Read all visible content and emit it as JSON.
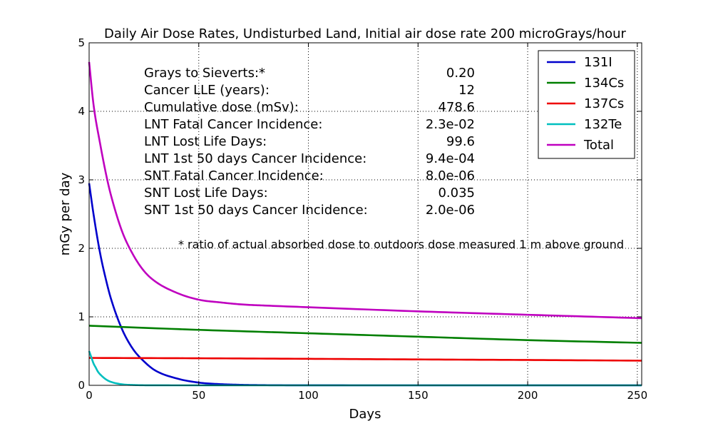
{
  "chart_data": {
    "type": "line",
    "title": "Daily Air Dose Rates, Undisturbed Land, Initial air dose rate 200 microGrays/hour",
    "xlabel": "Days",
    "ylabel": "mGy per day",
    "xlim": [
      0,
      252
    ],
    "ylim": [
      0,
      5
    ],
    "xticks": [
      0,
      50,
      100,
      150,
      200,
      250
    ],
    "yticks": [
      0,
      1,
      2,
      3,
      4,
      5
    ],
    "grid": true,
    "legend_position": "top-right",
    "series": [
      {
        "name": "131I",
        "color": "#0000cc",
        "x": [
          0,
          2,
          5,
          8,
          10,
          15,
          20,
          25,
          30,
          40,
          50,
          60,
          70,
          80,
          100,
          150,
          200,
          252
        ],
        "y": [
          2.95,
          2.5,
          1.93,
          1.5,
          1.26,
          0.82,
          0.53,
          0.35,
          0.22,
          0.1,
          0.04,
          0.017,
          0.007,
          0.003,
          0.0005,
          0.0,
          0.0,
          0.0
        ]
      },
      {
        "name": "134Cs",
        "color": "#007f00",
        "x": [
          0,
          50,
          100,
          150,
          200,
          252
        ],
        "y": [
          0.87,
          0.81,
          0.76,
          0.71,
          0.66,
          0.62
        ]
      },
      {
        "name": "137Cs",
        "color": "#ee0000",
        "x": [
          0,
          50,
          100,
          150,
          200,
          252
        ],
        "y": [
          0.4,
          0.395,
          0.387,
          0.378,
          0.37,
          0.36
        ]
      },
      {
        "name": "132Te",
        "color": "#00bfbf",
        "x": [
          0,
          1,
          2,
          3,
          4,
          6,
          8,
          10,
          15,
          20,
          30,
          50,
          252
        ],
        "y": [
          0.5,
          0.41,
          0.32,
          0.26,
          0.2,
          0.13,
          0.08,
          0.05,
          0.015,
          0.005,
          0.0005,
          0.0,
          0.0
        ]
      },
      {
        "name": "Total",
        "color": "#bf00bf",
        "x": [
          0,
          2,
          5,
          8,
          10,
          15,
          20,
          25,
          30,
          40,
          50,
          60,
          70,
          80,
          100,
          150,
          200,
          252
        ],
        "y": [
          4.72,
          4.1,
          3.53,
          3.04,
          2.77,
          2.25,
          1.91,
          1.67,
          1.52,
          1.35,
          1.25,
          1.21,
          1.18,
          1.165,
          1.14,
          1.08,
          1.03,
          0.98
        ]
      }
    ],
    "annotation_rows": [
      {
        "label": "Grays to Sieverts:*",
        "value": "0.20"
      },
      {
        "label": "Cancer LLE (years):",
        "value": "12"
      },
      {
        "label": "Cumulative dose (mSv):",
        "value": "478.6"
      },
      {
        "label": "LNT Fatal Cancer Incidence:",
        "value": "2.3e-02"
      },
      {
        "label": "LNT Lost Life Days:",
        "value": "99.6"
      },
      {
        "label": "LNT 1st 50 days Cancer Incidence:",
        "value": "9.4e-04"
      },
      {
        "label": "SNT Fatal Cancer Incidence:",
        "value": "8.0e-06"
      },
      {
        "label": "SNT Lost Life Days:",
        "value": "0.035"
      },
      {
        "label": "SNT 1st 50 days Cancer Incidence:",
        "value": "2.0e-06"
      }
    ],
    "footnote": "* ratio of actual absorbed dose to outdoors dose measured 1 m above ground"
  }
}
